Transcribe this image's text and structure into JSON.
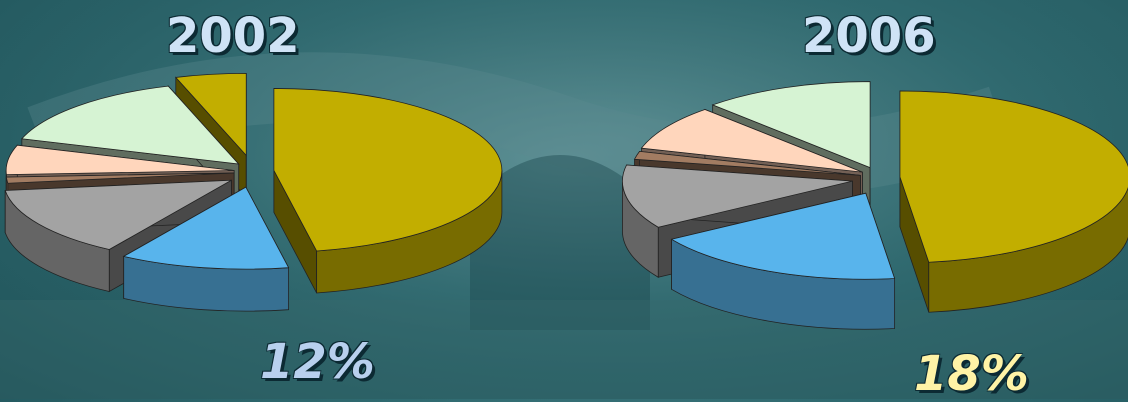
{
  "chart_data": [
    {
      "type": "pie",
      "title": "2002",
      "highlight_label": "12%",
      "slices": [
        {
          "value": 47,
          "color": "#c2ae00"
        },
        {
          "value": 12,
          "color": "#58b4ec"
        },
        {
          "value": 14,
          "color": "#a3a3a3"
        },
        {
          "value": 1.2,
          "color": "#a27c62"
        },
        {
          "value": 5.8,
          "color": "#ffd6bc"
        },
        {
          "value": 15,
          "color": "#d6f3d3"
        },
        {
          "value": 5,
          "color": "#c2ae00"
        }
      ]
    },
    {
      "type": "pie",
      "title": "2006",
      "highlight_label": "18%",
      "slices": [
        {
          "value": 48,
          "color": "#c2ae00"
        },
        {
          "value": 18,
          "color": "#58b4ec"
        },
        {
          "value": 12,
          "color": "#a3a3a3"
        },
        {
          "value": 1.5,
          "color": "#a27c62"
        },
        {
          "value": 8.5,
          "color": "#ffd6bc"
        },
        {
          "value": 12,
          "color": "#d6f3d3"
        }
      ]
    }
  ],
  "colors": {
    "title_text": "#cfe3f6",
    "pct_2002_text": "#b8d0ee",
    "pct_2006_text": "#fff3a6",
    "background": "#2f6a70"
  }
}
